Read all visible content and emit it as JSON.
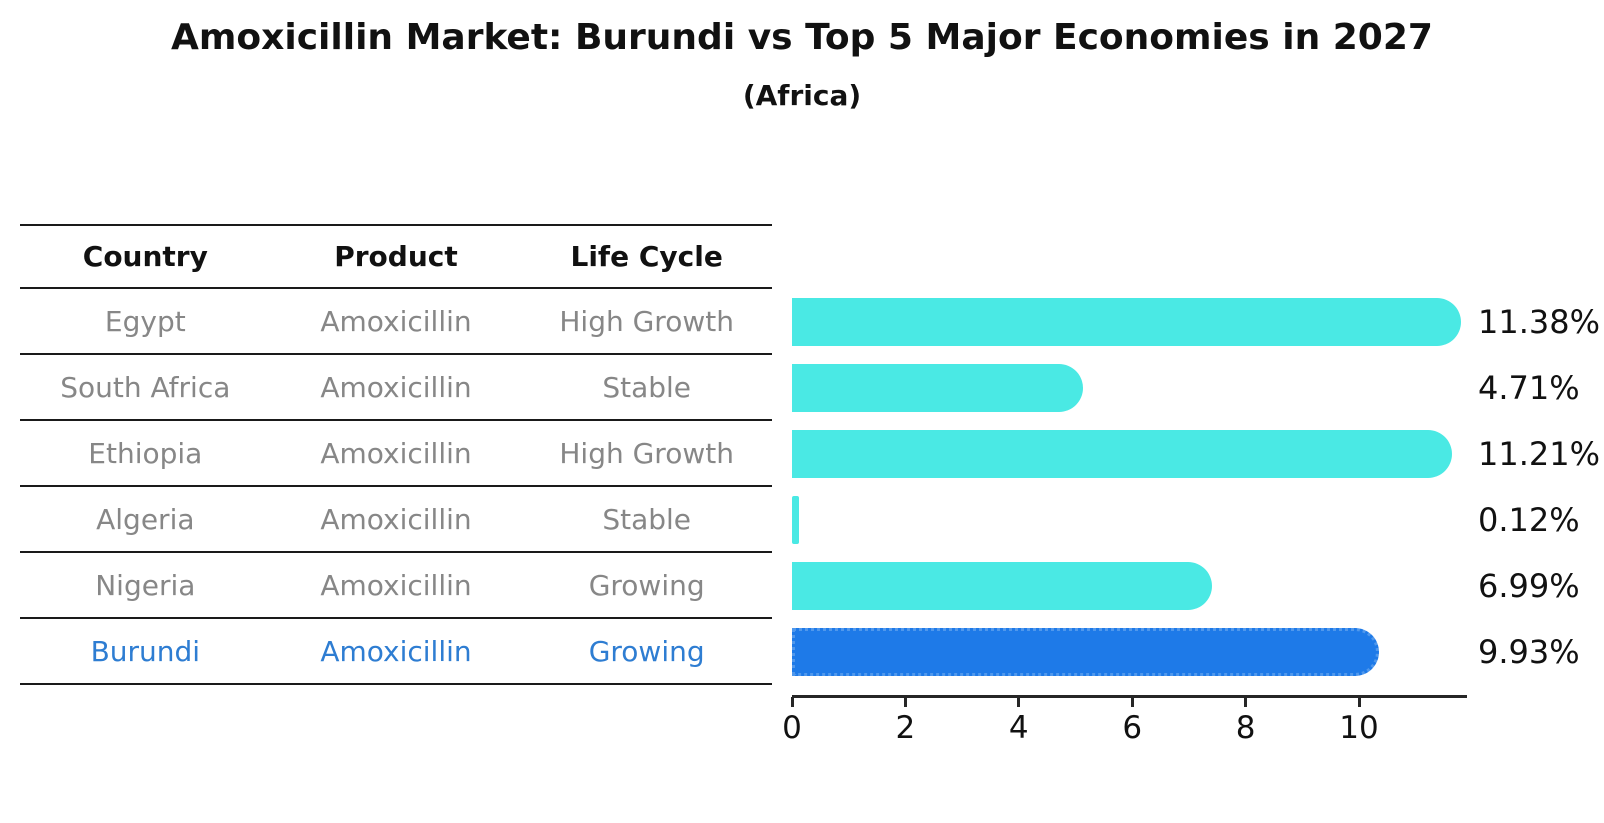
{
  "chart_data": {
    "type": "bar",
    "orientation": "horizontal",
    "title": "Amoxicillin Market: Burundi vs Top 5 Major Economies in 2027",
    "subtitle": "(Africa)",
    "xlabel": "",
    "ylabel": "",
    "xlim": [
      0,
      11.9
    ],
    "x_ticks": [
      0,
      2,
      4,
      6,
      8,
      10
    ],
    "grid": false,
    "legend": false,
    "table_headers": [
      "Country",
      "Product",
      "Life Cycle"
    ],
    "rows": [
      {
        "country": "Egypt",
        "product": "Amoxicillin",
        "life_cycle": "High Growth",
        "value": 11.38,
        "value_label": "11.38%",
        "highlighted": false
      },
      {
        "country": "South Africa",
        "product": "Amoxicillin",
        "life_cycle": "Stable",
        "value": 4.71,
        "value_label": "4.71%",
        "highlighted": false
      },
      {
        "country": "Ethiopia",
        "product": "Amoxicillin",
        "life_cycle": "High Growth",
        "value": 11.21,
        "value_label": "11.21%",
        "highlighted": false
      },
      {
        "country": "Algeria",
        "product": "Amoxicillin",
        "life_cycle": "Stable",
        "value": 0.12,
        "value_label": "0.12%",
        "highlighted": false
      },
      {
        "country": "Nigeria",
        "product": "Amoxicillin",
        "life_cycle": "Growing",
        "value": 6.99,
        "value_label": "6.99%",
        "highlighted": false
      },
      {
        "country": "Burundi",
        "product": "Amoxicillin",
        "life_cycle": "Growing",
        "value": 9.93,
        "value_label": "9.93%",
        "highlighted": true
      }
    ],
    "colors": {
      "bar": "#4AE9E4",
      "highlight_bar": "#1E7AE8",
      "highlight_bar_border": "#5098EC",
      "highlight_text": "#2E7DD2",
      "row_text": "#878787",
      "header_text": "#111111",
      "value_text": "#111111",
      "axis": "#262626"
    }
  }
}
